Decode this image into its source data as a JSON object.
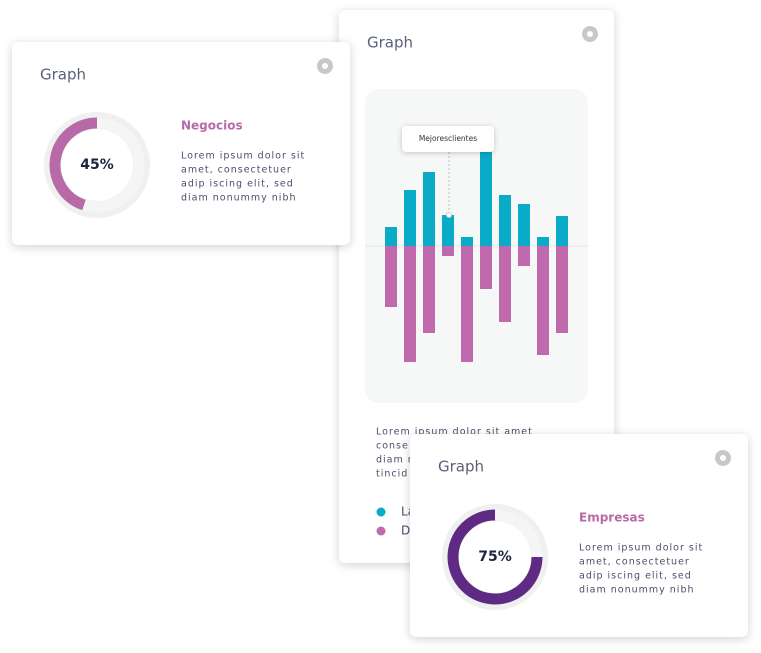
{
  "cards": [
    {
      "title": "Graph",
      "chart": {
        "type": "donut",
        "value": 45,
        "value_label": "45%",
        "color": "#b86aa8",
        "track_color": "#f0f0f0"
      },
      "heading": "Negocios",
      "text_lines": [
        "Lorem ipsum dolor sit",
        "amet, consectetuer",
        "adip iscing elit, sed",
        "diam nonummy nibh"
      ]
    },
    {
      "title": "Graph",
      "chart": {
        "type": "bar",
        "ylim": [
          -157,
          157
        ],
        "annotation": "Mejoresclientes",
        "series": [
          {
            "name": "La",
            "color": "#0aabc6",
            "values": [
              19,
              56,
              74,
              31,
              9,
              96,
              51,
              42,
              9,
              30
            ]
          },
          {
            "name": "D",
            "color": "#c06aad",
            "values": [
              -61,
              -116,
              -87,
              -10,
              -116,
              -43,
              -76,
              -20,
              -109,
              -87
            ]
          }
        ]
      },
      "text_lines": [
        "Lorem ipsum dolor sit amet",
        "conse",
        "diam n",
        "tincid"
      ]
    },
    {
      "title": "Graph",
      "chart": {
        "type": "donut",
        "value": 75,
        "value_label": "75%",
        "color": "#5e2a84",
        "track_color": "#f0f0f0"
      },
      "heading": "Empresas",
      "text_lines": [
        "Lorem ipsum dolor sit",
        "amet, consectetuer",
        "adip iscing elit, sed",
        "diam nonummy nibh"
      ]
    }
  ]
}
